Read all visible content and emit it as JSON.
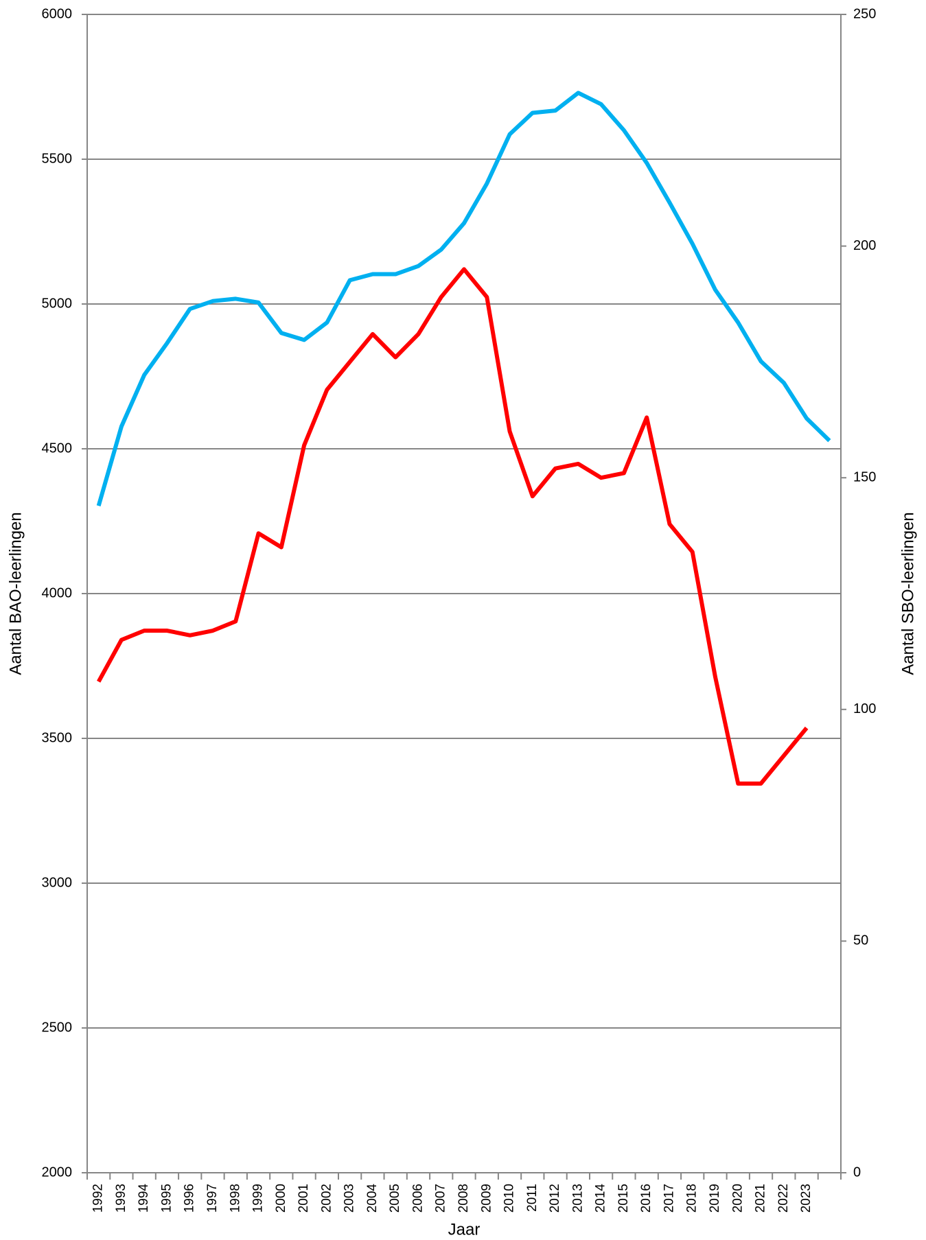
{
  "chart_data": {
    "type": "line",
    "x_label": "Jaar",
    "y_label": "Aantal BAO-leerlingen",
    "y2_label": "Aantal SBO-leerlingen",
    "categories": [
      "1992",
      "1993",
      "1994",
      "1995",
      "1996",
      "1997",
      "1998",
      "1999",
      "2000",
      "2001",
      "2002",
      "2003",
      "2004",
      "2005",
      "2006",
      "2007",
      "2008",
      "2009",
      "2010",
      "2011",
      "2012",
      "2013",
      "2014",
      "2015",
      "2016",
      "2017",
      "2018",
      "2019",
      "2020",
      "2021",
      "2022",
      "2023",
      null
    ],
    "series": [
      {
        "color": "#00b0f0",
        "values": [
          4303,
          4577,
          4755,
          4865,
          4983,
          5010,
          5018,
          5005,
          4900,
          4876,
          4936,
          5082,
          5103,
          5103,
          5131,
          5188,
          5279,
          5416,
          5586,
          5660,
          5668,
          5729,
          5690,
          5600,
          5487,
          5350,
          5208,
          5049,
          4936,
          4802,
          4728,
          4605,
          4528
        ]
      },
      {
        "color": "#ff0000",
        "axis": "y2",
        "values": [
          106,
          115,
          117,
          117,
          116,
          117,
          119,
          138,
          135,
          157,
          169,
          175,
          181,
          176,
          181,
          189,
          195,
          189,
          160,
          146,
          152,
          153,
          150,
          151,
          163,
          140,
          134,
          107,
          84,
          84,
          90,
          96,
          null
        ]
      }
    ],
    "ylim": [
      2000,
      6000
    ],
    "yticks": [
      2000,
      2500,
      3000,
      3500,
      4000,
      4500,
      5000,
      5500,
      6000
    ],
    "y2lim": [
      0,
      250
    ],
    "y2ticks": [
      0,
      50,
      100,
      150,
      200,
      250
    ],
    "grid": true
  }
}
